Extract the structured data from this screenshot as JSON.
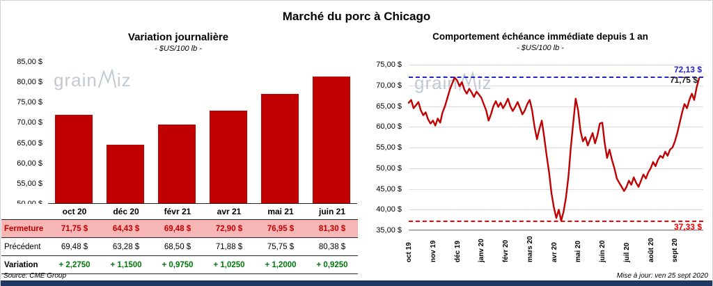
{
  "header": {
    "title": "Marché du porc à Chicago"
  },
  "watermark": {
    "text": "grainwiz",
    "part1": "grain",
    "part2": "iz"
  },
  "footer": {
    "source": "Source: CME Group",
    "updated": "Mise à jour: ven 25 sept 2020"
  },
  "table": {
    "columns": [
      "oct 20",
      "déc 20",
      "févr 21",
      "avr 21",
      "mai 21",
      "juin 21"
    ],
    "rows": [
      {
        "label": "Fermeture",
        "values": [
          "71,75 $",
          "64,43 $",
          "69,48 $",
          "72,90 $",
          "76,95 $",
          "81,30 $"
        ]
      },
      {
        "label": "Précédent",
        "values": [
          "69,48 $",
          "63,28 $",
          "68,50 $",
          "71,88 $",
          "75,75 $",
          "80,38 $"
        ]
      },
      {
        "label": "Variation",
        "values": [
          "+ 2,2750",
          "+ 1,1500",
          "+ 0,9750",
          "+ 1,0250",
          "+ 1,2000",
          "+ 0,9250"
        ]
      }
    ]
  },
  "chart_data": [
    {
      "type": "bar",
      "title": "Variation  journalière",
      "subtitle": "- $US/100 lb -",
      "categories": [
        "oct 20",
        "déc 20",
        "févr 21",
        "avr 21",
        "mai 21",
        "juin 21"
      ],
      "values": [
        71.75,
        64.43,
        69.48,
        72.9,
        76.95,
        81.3
      ],
      "ylim": [
        50,
        85
      ],
      "y_ticks": [
        "85,00 $",
        "80,00 $",
        "75,00 $",
        "70,00 $",
        "65,00 $",
        "60,00 $",
        "55,00 $",
        "50,00 $"
      ],
      "bar_color": "#C00000",
      "grid": false,
      "legend": "none"
    },
    {
      "type": "line",
      "title": "Comportement  échéance immédiate depuis 1 an",
      "subtitle": "- $US/100 lb -",
      "x_labels": [
        "oct 19",
        "nov 19",
        "déc 19",
        "janv 20",
        "févr 20",
        "mars 20",
        "avr 20",
        "mai 20",
        "juin 20",
        "juil 20",
        "août 20",
        "sept 20"
      ],
      "ylim": [
        35,
        75
      ],
      "y_ticks": [
        "75,00 $",
        "70,00 $",
        "65,00 $",
        "60,00 $",
        "55,00 $",
        "50,00 $",
        "45,00 $",
        "40,00 $",
        "35,00 $"
      ],
      "line_color": "#C00000",
      "grid": true,
      "legend": "none",
      "high_line": {
        "value": 72.13,
        "label": "72,13 $",
        "color": "#2323C8",
        "style": "dashed"
      },
      "last_point": {
        "value": 71.75,
        "label": "71,75 $",
        "color": "#1F1F1F"
      },
      "low_line": {
        "value": 37.33,
        "label": "37,33 $",
        "color": "#FF0000",
        "style": "dashed"
      },
      "values": [
        65.8,
        66.5,
        64.5,
        65.2,
        66.0,
        64.0,
        62.8,
        63.5,
        61.8,
        60.8,
        61.5,
        60.3,
        62.0,
        61.0,
        63.5,
        65.0,
        67.0,
        69.0,
        70.5,
        71.9,
        71.2,
        69.8,
        70.8,
        69.0,
        68.0,
        69.2,
        68.3,
        67.2,
        68.5,
        67.8,
        67.0,
        65.5,
        64.0,
        61.5,
        63.0,
        65.0,
        66.2,
        64.8,
        65.8,
        64.5,
        65.5,
        66.8,
        65.0,
        63.8,
        64.8,
        66.0,
        64.5,
        63.0,
        64.0,
        65.5,
        66.5,
        64.0,
        60.0,
        57.0,
        59.5,
        61.5,
        57.5,
        53.0,
        49.0,
        44.0,
        40.5,
        38.0,
        40.0,
        37.3,
        39.5,
        43.0,
        48.0,
        55.0,
        61.0,
        66.8,
        64.0,
        59.0,
        56.5,
        57.5,
        55.5,
        57.0,
        58.5,
        56.0,
        58.0,
        60.8,
        61.0,
        56.0,
        52.5,
        54.5,
        52.0,
        50.0,
        47.5,
        46.5,
        45.5,
        44.5,
        45.5,
        47.0,
        46.0,
        47.8,
        46.5,
        45.5,
        47.0,
        48.5,
        47.5,
        49.0,
        50.0,
        51.5,
        50.5,
        52.0,
        53.0,
        52.5,
        54.0,
        53.0,
        54.5,
        55.0,
        56.5,
        58.5,
        61.0,
        63.5,
        65.5,
        64.5,
        66.5,
        68.0,
        66.5,
        69.5,
        71.75
      ]
    }
  ]
}
